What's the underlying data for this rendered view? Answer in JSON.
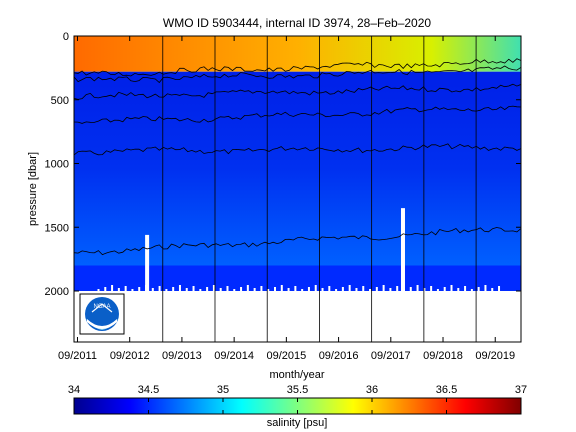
{
  "chart_data": {
    "type": "heatmap",
    "title": "WMO ID 5903444, internal ID 3974, 28–Feb–2020",
    "xlabel": "month/year",
    "ylabel": "pressure [dbar]",
    "x_ticks": [
      "09/2011",
      "09/2012",
      "09/2013",
      "09/2014",
      "09/2015",
      "09/2016",
      "09/2017",
      "09/2018",
      "09/2019"
    ],
    "y_ticks": [
      0,
      500,
      1000,
      1500,
      2000
    ],
    "y_range": [
      0,
      2400
    ],
    "y_reversed": true,
    "x_range_months_label": [
      "09/2011",
      "02/2020"
    ],
    "colorbar": {
      "label": "salinity [psu]",
      "ticks": [
        34,
        34.5,
        35,
        35.5,
        36,
        36.5,
        37
      ],
      "range": [
        34,
        37
      ],
      "colormap": "jet"
    },
    "contour_depths": [
      {
        "name": "1700",
        "start": 1700,
        "end": 1510
      },
      {
        "name": "910",
        "start": 910,
        "end": 870
      },
      {
        "name": "680",
        "start": 680,
        "end": 560
      },
      {
        "name": "480",
        "start": 480,
        "end": 400
      },
      {
        "name": "350",
        "start": 350,
        "end": 260
      },
      {
        "name": "300",
        "start": 300,
        "end": 200
      }
    ],
    "water_bands": [
      {
        "from": 0,
        "to": 280,
        "salinity": 36.3
      },
      {
        "from": 280,
        "to": 1800,
        "salinity": 34.2
      },
      {
        "from": 1800,
        "to": 2000,
        "salinity": 34.5
      }
    ],
    "data_bottom_dbar": 2000,
    "gaps": [
      {
        "time": 2013.0,
        "from": 1560,
        "to": 2000
      },
      {
        "time": 2017.9,
        "from": 1350,
        "to": 2000
      }
    ],
    "profile_gap_times": [
      2011.33,
      2013.3,
      2014.3,
      2015.3,
      2016.3,
      2017.3,
      2018.3,
      2019.3
    ],
    "logo": "NOAA"
  }
}
